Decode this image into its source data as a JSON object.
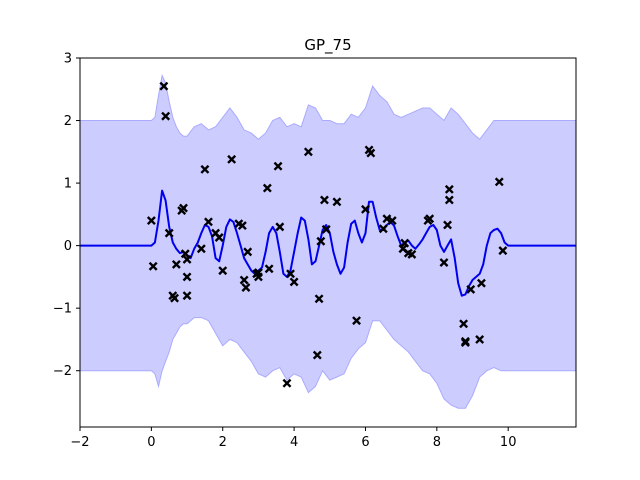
{
  "chart_data": {
    "type": "scatter",
    "title": "GP_75",
    "xlabel": "",
    "ylabel": "",
    "xlim": [
      -2,
      11.9
    ],
    "ylim": [
      -2.9,
      3
    ],
    "xticks": [
      -2,
      0,
      2,
      4,
      6,
      8,
      10
    ],
    "yticks": [
      -2,
      -1,
      0,
      1,
      2,
      3
    ],
    "xtick_labels": [
      "−2",
      "0",
      "2",
      "4",
      "6",
      "8",
      "10"
    ],
    "ytick_labels": [
      "−2",
      "−1",
      "0",
      "1",
      "2",
      "3"
    ],
    "grid": false,
    "colors": {
      "band_fill": "#ccccff",
      "band_edge": "#aaaaff",
      "mean_line": "#0000ee",
      "points": "#000000"
    },
    "series": [
      {
        "kind": "mean_line",
        "x": [
          -2,
          0,
          0.1,
          0.2,
          0.3,
          0.4,
          0.5,
          0.6,
          0.7,
          0.8,
          0.9,
          1.0,
          1.1,
          1.2,
          1.3,
          1.4,
          1.5,
          1.6,
          1.7,
          1.8,
          1.9,
          2.0,
          2.1,
          2.2,
          2.3,
          2.4,
          2.5,
          2.6,
          2.7,
          2.8,
          2.9,
          3.0,
          3.1,
          3.2,
          3.3,
          3.4,
          3.5,
          3.6,
          3.7,
          3.8,
          3.9,
          4.0,
          4.1,
          4.2,
          4.3,
          4.4,
          4.5,
          4.6,
          4.7,
          4.8,
          4.9,
          5.0,
          5.1,
          5.2,
          5.3,
          5.4,
          5.5,
          5.6,
          5.7,
          5.8,
          5.9,
          6.0,
          6.1,
          6.2,
          6.3,
          6.4,
          6.5,
          6.6,
          6.7,
          6.8,
          6.9,
          7.0,
          7.1,
          7.2,
          7.3,
          7.4,
          7.5,
          7.6,
          7.7,
          7.8,
          7.9,
          8.0,
          8.1,
          8.2,
          8.3,
          8.4,
          8.5,
          8.6,
          8.7,
          8.8,
          8.9,
          9.0,
          9.1,
          9.2,
          9.3,
          9.4,
          9.5,
          9.6,
          9.7,
          9.8,
          9.9,
          10.0,
          10.1,
          10.2,
          10.5,
          11.9
        ],
        "y": [
          0,
          0,
          0.05,
          0.4,
          0.88,
          0.72,
          0.3,
          0.05,
          -0.05,
          -0.12,
          -0.1,
          -0.15,
          -0.2,
          -0.05,
          0.05,
          0.2,
          0.33,
          0.3,
          0.15,
          -0.2,
          -0.25,
          0.0,
          0.3,
          0.42,
          0.38,
          0.2,
          0.0,
          -0.2,
          -0.3,
          -0.4,
          -0.45,
          -0.4,
          -0.35,
          -0.1,
          0.2,
          0.3,
          0.2,
          -0.1,
          -0.45,
          -0.5,
          -0.4,
          -0.1,
          0.2,
          0.45,
          0.4,
          0.1,
          -0.3,
          -0.25,
          0.0,
          0.25,
          0.33,
          0.2,
          -0.1,
          -0.3,
          -0.45,
          -0.35,
          0.05,
          0.35,
          0.4,
          0.2,
          0.05,
          0.2,
          0.7,
          0.7,
          0.45,
          0.25,
          0.25,
          0.33,
          0.38,
          0.32,
          0.15,
          0.0,
          0.05,
          0.08,
          0.0,
          -0.05,
          0.02,
          0.1,
          0.2,
          0.3,
          0.33,
          0.25,
          0.0,
          -0.1,
          0.0,
          0.1,
          -0.2,
          -0.6,
          -0.8,
          -0.78,
          -0.65,
          -0.55,
          -0.5,
          -0.45,
          -0.3,
          0.0,
          0.2,
          0.25,
          0.27,
          0.2,
          0.05,
          0.0,
          0.0,
          0.0,
          0,
          0
        ]
      },
      {
        "kind": "confidence_band",
        "x": [
          -2,
          0,
          0.1,
          0.2,
          0.3,
          0.4,
          0.5,
          0.6,
          0.7,
          0.8,
          0.9,
          1.0,
          1.2,
          1.4,
          1.6,
          1.8,
          2.0,
          2.2,
          2.4,
          2.6,
          2.8,
          3.0,
          3.2,
          3.4,
          3.6,
          3.8,
          4.0,
          4.2,
          4.4,
          4.6,
          4.8,
          5.0,
          5.2,
          5.4,
          5.6,
          5.8,
          6.0,
          6.2,
          6.4,
          6.6,
          6.8,
          7.0,
          7.2,
          7.4,
          7.6,
          7.8,
          8.0,
          8.2,
          8.4,
          8.6,
          8.8,
          9.0,
          9.2,
          9.4,
          9.6,
          9.8,
          10.0,
          10.2,
          11.9
        ],
        "upper": [
          2,
          2,
          2.05,
          2.4,
          2.72,
          2.6,
          2.3,
          2.05,
          1.9,
          1.8,
          1.75,
          1.75,
          1.9,
          1.95,
          1.85,
          1.9,
          2.05,
          2.2,
          2.05,
          1.85,
          1.8,
          1.7,
          1.8,
          2.0,
          2.05,
          1.9,
          1.95,
          1.9,
          2.25,
          2.2,
          2.0,
          2.0,
          1.95,
          1.95,
          2.1,
          2.05,
          2.2,
          2.55,
          2.4,
          2.3,
          2.1,
          2.05,
          2.1,
          2.15,
          2.2,
          2.2,
          2.1,
          2.0,
          2.2,
          2.1,
          1.95,
          1.8,
          1.7,
          1.85,
          2.0,
          2.0,
          2.0,
          2.0,
          2
        ],
        "lower": [
          -2,
          -2,
          -2.05,
          -2.25,
          -2.0,
          -1.85,
          -1.7,
          -1.5,
          -1.4,
          -1.3,
          -1.25,
          -1.25,
          -1.15,
          -1.15,
          -1.2,
          -1.4,
          -1.6,
          -1.5,
          -1.55,
          -1.7,
          -1.85,
          -2.05,
          -2.1,
          -2.0,
          -1.95,
          -2.15,
          -2.05,
          -2.1,
          -2.35,
          -2.25,
          -2.0,
          -2.15,
          -2.1,
          -2.05,
          -1.8,
          -1.65,
          -1.55,
          -1.2,
          -1.2,
          -1.35,
          -1.5,
          -1.6,
          -1.7,
          -1.85,
          -2.0,
          -2.05,
          -2.2,
          -2.45,
          -2.55,
          -2.6,
          -2.6,
          -2.4,
          -2.1,
          -2.0,
          -1.95,
          -2.0,
          -2.0,
          -2.0,
          -2
        ]
      },
      {
        "kind": "observations",
        "x": [
          0.0,
          0.05,
          0.35,
          0.4,
          0.5,
          0.6,
          0.65,
          0.7,
          0.85,
          0.9,
          0.95,
          1.0,
          1.0,
          1.0,
          1.4,
          1.5,
          1.6,
          1.8,
          1.9,
          2.0,
          2.25,
          2.45,
          2.55,
          2.6,
          2.65,
          2.7,
          2.95,
          3.0,
          3.0,
          3.25,
          3.3,
          3.55,
          3.6,
          3.8,
          3.9,
          4.0,
          4.4,
          4.65,
          4.7,
          4.75,
          4.85,
          4.9,
          5.2,
          5.75,
          6.0,
          6.1,
          6.15,
          6.5,
          6.6,
          6.75,
          7.05,
          7.1,
          7.2,
          7.3,
          7.75,
          7.8,
          8.2,
          8.3,
          8.35,
          8.35,
          8.75,
          8.8,
          8.8,
          8.95,
          9.2,
          9.25,
          9.75,
          9.85
        ],
        "y": [
          0.4,
          -0.33,
          2.55,
          2.07,
          0.2,
          -0.8,
          -0.84,
          -0.3,
          0.56,
          0.6,
          -0.13,
          -0.22,
          -0.5,
          -0.8,
          -0.05,
          1.22,
          0.38,
          0.2,
          0.13,
          -0.4,
          1.38,
          0.35,
          0.32,
          -0.55,
          -0.67,
          -0.1,
          -0.45,
          -0.5,
          -0.43,
          0.92,
          -0.37,
          1.27,
          0.3,
          -2.2,
          -0.45,
          -0.58,
          1.5,
          -1.75,
          -0.85,
          0.07,
          0.73,
          0.26,
          0.7,
          -1.2,
          0.58,
          1.53,
          1.48,
          0.27,
          0.43,
          0.4,
          -0.05,
          0.04,
          -0.12,
          -0.14,
          0.4,
          0.43,
          -0.27,
          0.33,
          0.9,
          0.73,
          -1.25,
          -1.55,
          -1.53,
          -0.7,
          -1.5,
          -0.6,
          1.02,
          -0.08
        ]
      }
    ]
  }
}
